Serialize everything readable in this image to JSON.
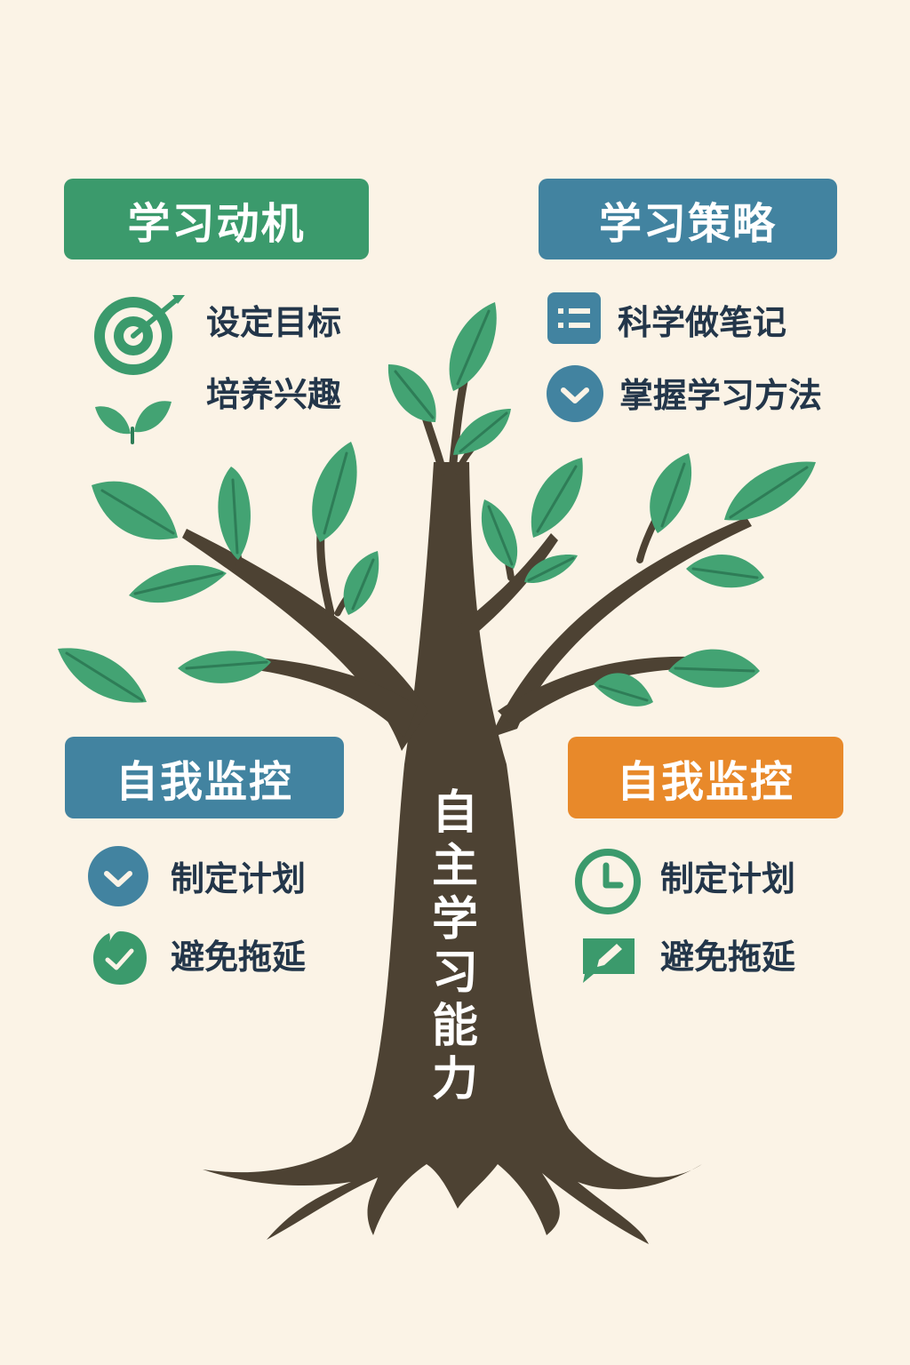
{
  "center_label": [
    "自",
    "主",
    "学",
    "习",
    "能",
    "力"
  ],
  "top_left": {
    "title": "学习动机",
    "items": [
      {
        "label": "设定目标",
        "icon": "target-icon"
      },
      {
        "label": "培养兴趣",
        "icon": "sprout-icon"
      }
    ]
  },
  "top_right": {
    "title": "学习策略",
    "items": [
      {
        "label": "科学做笔记",
        "icon": "list-icon"
      },
      {
        "label": "掌握学习方法",
        "icon": "check-circle-icon"
      }
    ]
  },
  "bottom_left": {
    "title": "自我监控",
    "items": [
      {
        "label": "制定计划",
        "icon": "check-circle-icon"
      },
      {
        "label": "避免拖延",
        "icon": "check-leaf-icon"
      }
    ]
  },
  "bottom_right": {
    "title": "自我监控",
    "items": [
      {
        "label": "制定计划",
        "icon": "clock-icon"
      },
      {
        "label": "避免拖延",
        "icon": "pencil-chat-icon"
      }
    ]
  },
  "colors": {
    "background": "#fbf3e6",
    "trunk": "#4d4233",
    "leaf": "#43a373",
    "green_header": "#3b9a6c",
    "blue_header": "#4283a0",
    "orange_header": "#e8892a",
    "text": "#23364a"
  }
}
